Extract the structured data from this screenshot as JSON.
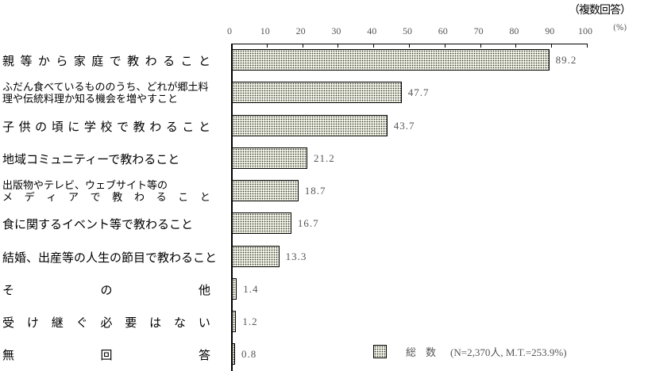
{
  "chart_data": {
    "type": "bar",
    "orientation": "horizontal",
    "title": "",
    "note": "（複数回答）",
    "xlabel": "(%)",
    "ylabel": "",
    "xlim": [
      0,
      100
    ],
    "xticks": [
      0,
      10,
      20,
      30,
      40,
      50,
      60,
      70,
      80,
      90,
      100
    ],
    "grid": false,
    "legend_position": "bottom-right",
    "categories": [
      "親等から家庭で教わること",
      "ふだん食べているもののうち、どれが郷土料理や伝統料理か知る機会を増やすこと",
      "子供の頃に学校で教わること",
      "地域コミュニティーで教わること",
      "出版物やテレビ、ウェブサイト等のメディアで教わること",
      "食に関するイベント等で教わること",
      "結婚、出産等の人生の節目で教わること",
      "その他",
      "受け継ぐ必要はない",
      "無回答"
    ],
    "series": [
      {
        "name": "総数",
        "note": "(N=2,370人, M.T.=253.9%)",
        "values": [
          89.2,
          47.7,
          43.7,
          21.2,
          18.7,
          16.7,
          13.3,
          1.4,
          1.2,
          0.8
        ]
      }
    ]
  },
  "header": {
    "note": "（複数回答）",
    "unit": "(%)",
    "ticks": [
      "0",
      "10",
      "20",
      "30",
      "40",
      "50",
      "60",
      "70",
      "80",
      "90",
      "100"
    ]
  },
  "rows": [
    {
      "label": "親等から家庭で教わること",
      "value": 89.2,
      "value_label": "89.2"
    },
    {
      "label_line1": "ふだん食べているもののうち、どれが郷土料",
      "label_line2": "理や伝統料理か知る機会を増やすこと",
      "value": 47.7,
      "value_label": "47.7"
    },
    {
      "label": "子供の頃に学校で教わること",
      "value": 43.7,
      "value_label": "43.7"
    },
    {
      "label": "地域コミュニティーで教わること",
      "value": 21.2,
      "value_label": "21.2"
    },
    {
      "label_line1": "出版物やテレビ、ウェブサイト等の",
      "label_line2": "メディアで教わること",
      "value": 18.7,
      "value_label": "18.7"
    },
    {
      "label": "食に関するイベント等で教わること",
      "value": 16.7,
      "value_label": "16.7"
    },
    {
      "label": "結婚、出産等の人生の節目で教わること",
      "value": 13.3,
      "value_label": "13.3"
    },
    {
      "label": "その他",
      "value": 1.4,
      "value_label": "1.4"
    },
    {
      "label": "受け継ぐ必要はない",
      "value": 1.2,
      "value_label": "1.2"
    },
    {
      "label": "無回答",
      "value": 0.8,
      "value_label": "0.8"
    }
  ],
  "legend": {
    "label": "総数",
    "note": "(N=2,370人, M.T.=253.9%)"
  },
  "colors": {
    "bar_fill": "#f3f6e6",
    "bar_dots": "#333333",
    "bar_border": "#000000",
    "value_text": "#555555"
  }
}
